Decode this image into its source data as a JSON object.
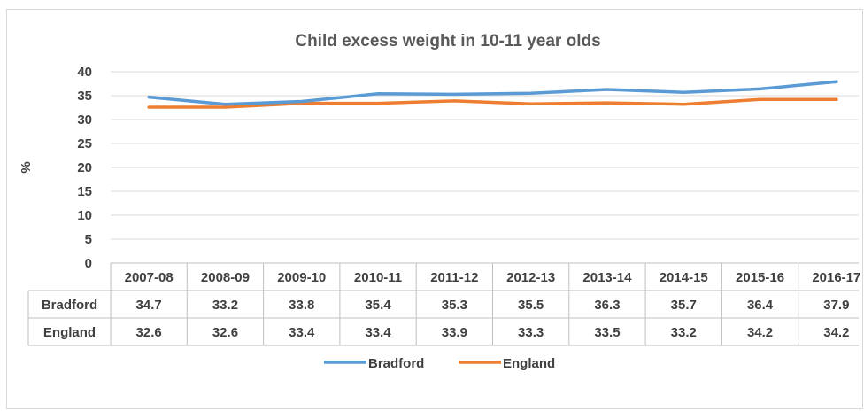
{
  "chart_data": {
    "type": "line",
    "title": "Child excess weight in 10-11 year olds",
    "ylabel": "%",
    "ylim": [
      0,
      40
    ],
    "yticks": [
      0,
      5,
      10,
      15,
      20,
      25,
      30,
      35,
      40
    ],
    "grid": true,
    "legend_position": "bottom",
    "categories": [
      "2007-08",
      "2008-09",
      "2009-10",
      "2010-11",
      "2011-12",
      "2012-13",
      "2013-14",
      "2014-15",
      "2015-16",
      "2016-17"
    ],
    "series": [
      {
        "name": "Bradford",
        "color": "#5b9bd5",
        "values": [
          34.7,
          33.2,
          33.8,
          35.4,
          35.3,
          35.5,
          36.3,
          35.7,
          36.4,
          37.9
        ]
      },
      {
        "name": "England",
        "color": "#ed7d31",
        "values": [
          32.6,
          32.6,
          33.4,
          33.4,
          33.9,
          33.3,
          33.5,
          33.2,
          34.2,
          34.2
        ]
      }
    ],
    "data_table": true
  }
}
